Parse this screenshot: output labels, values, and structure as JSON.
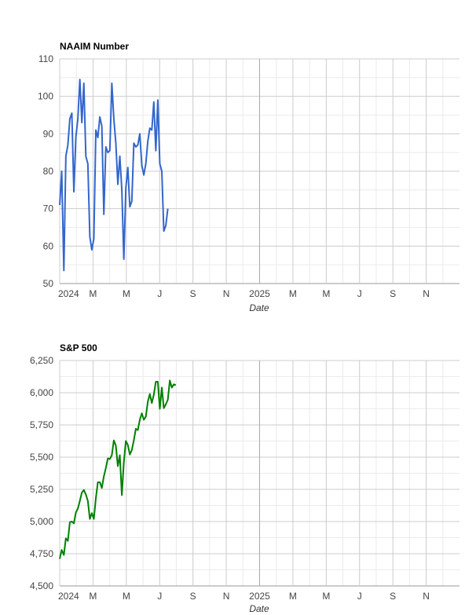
{
  "chart_data": [
    {
      "type": "line",
      "title": "NAAIM Number",
      "xlabel": "Date",
      "ylabel": "",
      "ylim": [
        50,
        110
      ],
      "yticks": [
        "50",
        "60",
        "70",
        "80",
        "90",
        "100",
        "110"
      ],
      "xticks": [
        "2024",
        "M",
        "M",
        "J",
        "S",
        "N",
        "2025",
        "M",
        "M",
        "J",
        "S",
        "N"
      ],
      "x_range_months": [
        0,
        24
      ],
      "grid": true,
      "color": "#3366cc",
      "series": [
        {
          "x": [
            0,
            0.12,
            0.25,
            0.37,
            0.49,
            0.61,
            0.73,
            0.85,
            0.97,
            1.09,
            1.21,
            1.33,
            1.45,
            1.57,
            1.69,
            1.81,
            1.93,
            2.05,
            2.17,
            2.29,
            2.41,
            2.53,
            2.65,
            2.77,
            2.89,
            3.01,
            3.13,
            3.25,
            3.37,
            3.49,
            3.61,
            3.73,
            3.85,
            3.97,
            4.09,
            4.21,
            4.33,
            4.45,
            4.57,
            4.69,
            4.81,
            4.93,
            5.05,
            5.17,
            5.29,
            5.41,
            5.53,
            5.65,
            5.77,
            5.89,
            6.01,
            6.13,
            6.25,
            6.37,
            6.49
          ],
          "y": [
            71,
            80,
            53.5,
            84,
            87,
            94,
            95.5,
            74.5,
            89,
            94,
            104.5,
            93,
            103.5,
            84,
            82,
            62.5,
            59,
            62,
            91,
            89,
            94.5,
            92,
            68.5,
            86.5,
            85,
            85.5,
            103.5,
            94,
            87.5,
            76.5,
            84,
            75,
            56.5,
            75.5,
            81,
            70.5,
            72,
            87.5,
            86.5,
            87,
            90,
            81.5,
            79,
            82,
            88,
            91.5,
            91,
            98.5,
            85.5,
            99,
            82,
            80,
            64,
            65.5,
            70
          ]
        }
      ]
    },
    {
      "type": "line",
      "title": "S&P 500",
      "xlabel": "Date",
      "ylabel": "",
      "ylim": [
        4500,
        6250
      ],
      "yticks": [
        "4,500",
        "4,750",
        "5,000",
        "5,250",
        "5,500",
        "5,750",
        "6,000",
        "6,250"
      ],
      "xticks": [
        "2024",
        "M",
        "M",
        "J",
        "S",
        "N",
        "2025",
        "M",
        "M",
        "J",
        "S",
        "N"
      ],
      "x_range_months": [
        0,
        24
      ],
      "grid": true,
      "color": "#008000",
      "series": [
        {
          "x": [
            0,
            0.12,
            0.25,
            0.37,
            0.49,
            0.61,
            0.73,
            0.85,
            0.97,
            1.09,
            1.21,
            1.33,
            1.45,
            1.57,
            1.69,
            1.81,
            1.93,
            2.05,
            2.17,
            2.29,
            2.41,
            2.53,
            2.65,
            2.77,
            2.89,
            3.01,
            3.13,
            3.25,
            3.37,
            3.49,
            3.61,
            3.73,
            3.85,
            3.97,
            4.09,
            4.21,
            4.33,
            4.45,
            4.57,
            4.69,
            4.81,
            4.93,
            5.05,
            5.17,
            5.29,
            5.41,
            5.53,
            5.65,
            5.77,
            5.89,
            6.01,
            6.13,
            6.25,
            6.37,
            6.49,
            6.61,
            6.73,
            6.85,
            6.97
          ],
          "y": [
            4710,
            4780,
            4740,
            4870,
            4850,
            4995,
            5000,
            4985,
            5070,
            5100,
            5160,
            5225,
            5245,
            5210,
            5160,
            5020,
            5065,
            5020,
            5180,
            5305,
            5305,
            5260,
            5350,
            5415,
            5490,
            5485,
            5515,
            5630,
            5590,
            5430,
            5515,
            5205,
            5460,
            5625,
            5595,
            5520,
            5555,
            5630,
            5720,
            5710,
            5790,
            5840,
            5790,
            5815,
            5930,
            5990,
            5920,
            5985,
            6085,
            6085,
            5875,
            6040,
            5880,
            5910,
            5945,
            6095,
            6040,
            6065,
            6060
          ]
        }
      ]
    }
  ]
}
